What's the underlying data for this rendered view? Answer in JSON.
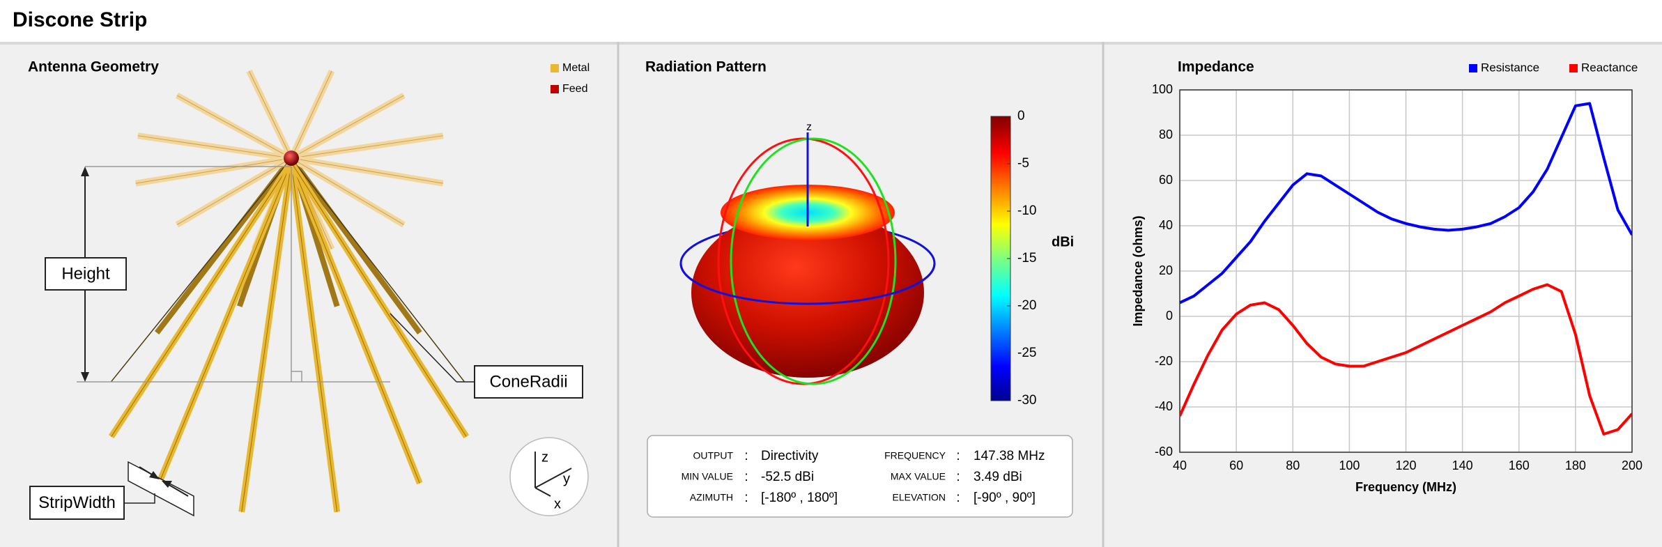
{
  "header": {
    "title": "Discone Strip"
  },
  "geometry": {
    "title": "Antenna Geometry",
    "legend": [
      {
        "name": "Metal",
        "color": "#e8b830"
      },
      {
        "name": "Feed",
        "color": "#c00000"
      }
    ],
    "labels": {
      "height": "Height",
      "cone_radii": "ConeRadii",
      "strip_width": "StripWidth"
    },
    "triad": [
      "z",
      "y",
      "x"
    ]
  },
  "pattern": {
    "title": "Radiation Pattern",
    "axis_label": "z",
    "colorbar": {
      "unit": "dBi",
      "lim": [
        -30,
        0
      ],
      "ticks": [
        0,
        -5,
        -10,
        -15,
        -20,
        -25,
        -30
      ]
    },
    "info": [
      [
        "OUTPUT",
        ":",
        "Directivity",
        "FREQUENCY",
        ":",
        "147.38 MHz"
      ],
      [
        "MIN VALUE",
        ":",
        "-52.5 dBi",
        "MAX VALUE",
        ":",
        "3.49 dBi"
      ],
      [
        "AZIMUTH",
        ":",
        "[-180º , 180º]",
        "ELEVATION",
        ":",
        "[-90º , 90º]"
      ]
    ]
  },
  "chart_data": {
    "type": "line",
    "title": "Impedance",
    "xlabel": "Frequency (MHz)",
    "ylabel": "Impedance (ohms)",
    "x": [
      40,
      45,
      50,
      55,
      60,
      65,
      70,
      75,
      80,
      85,
      90,
      95,
      100,
      105,
      110,
      115,
      120,
      125,
      130,
      135,
      140,
      145,
      150,
      155,
      160,
      165,
      170,
      175,
      180,
      185,
      190,
      195,
      200
    ],
    "series": [
      {
        "name": "Resistance",
        "color": "#0000ff",
        "values": [
          6,
          9,
          14,
          19,
          26,
          33,
          42,
          50,
          58,
          63,
          62,
          58,
          54,
          50,
          46,
          43,
          41,
          39.5,
          38.5,
          38,
          38.5,
          39.5,
          41,
          44,
          48,
          55,
          65,
          79,
          93,
          94,
          70,
          47,
          36
        ]
      },
      {
        "name": "Reactance",
        "color": "#ff0000",
        "values": [
          -44,
          -30,
          -17,
          -6,
          1,
          5,
          6,
          3,
          -4,
          -12,
          -18,
          -21,
          -22,
          -22,
          -20,
          -18,
          -16,
          -13,
          -10,
          -7,
          -4,
          -1,
          2,
          6,
          9,
          12,
          14,
          11,
          -8,
          -35,
          -52,
          -50,
          -43
        ]
      }
    ],
    "xlim": [
      40,
      200
    ],
    "xticks": [
      40,
      60,
      80,
      100,
      120,
      140,
      160,
      180,
      200
    ],
    "ylim": [
      -60,
      100
    ],
    "yticks": [
      -60,
      -40,
      -20,
      0,
      20,
      40,
      60,
      80,
      100
    ],
    "grid": true,
    "legend": "top-right"
  }
}
